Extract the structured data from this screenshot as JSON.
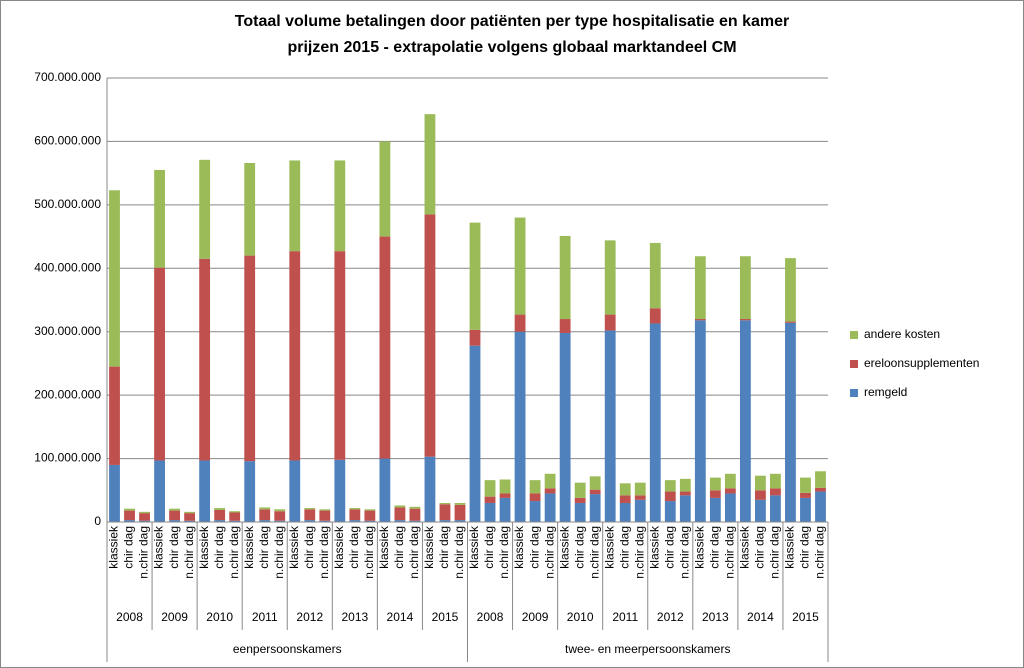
{
  "chart_data": {
    "type": "stacked_bar",
    "title": "Totaal volume betalingen door patiënten per type hospitalisatie en kamer",
    "subtitle": "prijzen 2015 - extrapolatie volgens globaal marktandeel CM",
    "categories": [
      "klassiek",
      "chir dag",
      "n.chir dag",
      "klassiek",
      "chir dag",
      "n.chir dag",
      "klassiek",
      "chir dag",
      "n.chir dag",
      "klassiek",
      "chir dag",
      "n.chir dag",
      "klassiek",
      "chir dag",
      "n.chir dag",
      "klassiek",
      "chir dag",
      "n.chir dag",
      "klassiek",
      "chir dag",
      "n.chir dag",
      "klassiek",
      "chir dag",
      "n.chir dag",
      "klassiek",
      "chir dag",
      "n.chir dag",
      "klassiek",
      "chir dag",
      "n.chir dag",
      "klassiek",
      "chir dag",
      "n.chir dag",
      "klassiek",
      "chir dag",
      "n.chir dag",
      "klassiek",
      "chir dag",
      "n.chir dag",
      "klassiek",
      "chir dag",
      "n.chir dag",
      "klassiek",
      "chir dag",
      "n.chir dag",
      "klassiek",
      "chir dag",
      "n.chir dag"
    ],
    "category_groups": [
      "2008",
      "2009",
      "2010",
      "2011",
      "2012",
      "2013",
      "2014",
      "2015",
      "2008",
      "2009",
      "2010",
      "2011",
      "2012",
      "2013",
      "2014",
      "2015"
    ],
    "category_supergroups": [
      "eenpersoonskamers",
      "twee- en meerpersoonskamers"
    ],
    "series": [
      {
        "name": "remgeld",
        "color": "#4f81bd",
        "values": [
          90000000,
          3000000,
          2000000,
          97000000,
          3000000,
          2000000,
          97000000,
          3000000,
          2000000,
          96000000,
          3000000,
          2000000,
          97000000,
          3000000,
          2000000,
          98000000,
          3000000,
          2000000,
          100000000,
          3000000,
          2000000,
          103000000,
          3000000,
          3000000,
          278000000,
          30000000,
          38000000,
          300000000,
          33000000,
          45000000,
          298000000,
          30000000,
          44000000,
          302000000,
          30000000,
          35000000,
          313000000,
          33000000,
          42000000,
          318000000,
          38000000,
          45000000,
          318000000,
          35000000,
          42000000,
          314000000,
          38000000,
          48000000
        ]
      },
      {
        "name": "ereloonsupplementen",
        "color": "#c0504d",
        "values": [
          155000000,
          15000000,
          12000000,
          304000000,
          15000000,
          12000000,
          318000000,
          16000000,
          13000000,
          324000000,
          17000000,
          15000000,
          330000000,
          17000000,
          16000000,
          329000000,
          17000000,
          16000000,
          350000000,
          20000000,
          19000000,
          382000000,
          25000000,
          24000000,
          25000000,
          10000000,
          7000000,
          27000000,
          12000000,
          8000000,
          22000000,
          8000000,
          7000000,
          25000000,
          12000000,
          7000000,
          24000000,
          15000000,
          6000000,
          2000000,
          12000000,
          8000000,
          2000000,
          15000000,
          11000000,
          2000000,
          8000000,
          6000000
        ]
      },
      {
        "name": "andere kosten",
        "color": "#9bbb59",
        "values": [
          278000000,
          3000000,
          2000000,
          154000000,
          3000000,
          2000000,
          156000000,
          3000000,
          2000000,
          146000000,
          3000000,
          3000000,
          143000000,
          2000000,
          2000000,
          143000000,
          2000000,
          2000000,
          150000000,
          3000000,
          3000000,
          158000000,
          2000000,
          3000000,
          169000000,
          26000000,
          22000000,
          153000000,
          21000000,
          23000000,
          131000000,
          24000000,
          21000000,
          117000000,
          19000000,
          20000000,
          103000000,
          18000000,
          20000000,
          99000000,
          20000000,
          23000000,
          99000000,
          23000000,
          23000000,
          100000000,
          24000000,
          26000000
        ]
      }
    ],
    "ylim": [
      0,
      700000000
    ],
    "yticks": [
      {
        "value": 0,
        "label": "0"
      },
      {
        "value": 100000000,
        "label": "100.000.000"
      },
      {
        "value": 200000000,
        "label": "200.000.000"
      },
      {
        "value": 300000000,
        "label": "300.000.000"
      },
      {
        "value": 400000000,
        "label": "400.000.000"
      },
      {
        "value": 500000000,
        "label": "500.000.000"
      },
      {
        "value": 600000000,
        "label": "600.000.000"
      },
      {
        "value": 700000000,
        "label": "700.000.000"
      }
    ],
    "grid": true,
    "legend": "right"
  }
}
